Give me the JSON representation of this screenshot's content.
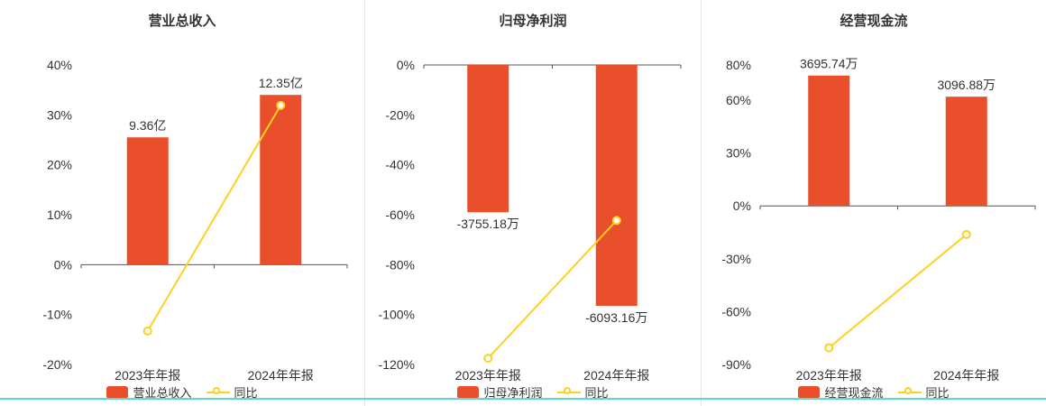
{
  "page": {
    "background": "#ffffff",
    "bottom_border_color": "#5ad8d2"
  },
  "colors": {
    "bar": "#ea4f2c",
    "line": "#ffd020",
    "axis": "#555555",
    "text": "#333333",
    "divider": "#e5e5e5"
  },
  "chart_data": [
    {
      "type": "bar",
      "title": "营业总收入",
      "categories": [
        "2023年年报",
        "2024年年报"
      ],
      "bar_series_name": "营业总收入",
      "line_series_name": "同比",
      "bar_labels": [
        "9.36亿",
        "12.35亿"
      ],
      "bar_axis_values": [
        25.5,
        34.0
      ],
      "line_values": [
        -13.3,
        31.9
      ],
      "y_ticks": [
        40,
        30,
        20,
        10,
        0,
        -10,
        -20
      ],
      "ylim": [
        -20,
        40
      ],
      "tick_suffix": "%",
      "grid": false,
      "legend_position": "bottom",
      "bar_label_position": "above"
    },
    {
      "type": "bar",
      "title": "归母净利润",
      "categories": [
        "2023年年报",
        "2024年年报"
      ],
      "bar_series_name": "归母净利润",
      "line_series_name": "同比",
      "bar_labels": [
        "-3755.18万",
        "-6093.16万"
      ],
      "bar_axis_values": [
        -59.0,
        -96.5
      ],
      "line_values": [
        -117.5,
        -62.3
      ],
      "y_ticks": [
        0,
        -20,
        -40,
        -60,
        -80,
        -100,
        -120
      ],
      "ylim": [
        -120,
        0
      ],
      "tick_suffix": "%",
      "grid": false,
      "legend_position": "bottom",
      "bar_label_position": "below"
    },
    {
      "type": "bar",
      "title": "经营现金流",
      "categories": [
        "2023年年报",
        "2024年年报"
      ],
      "bar_series_name": "经营现金流",
      "line_series_name": "同比",
      "bar_labels": [
        "3695.74万",
        "3096.88万"
      ],
      "bar_axis_values": [
        74.0,
        62.0
      ],
      "line_values": [
        -80.5,
        -16.2
      ],
      "y_ticks": [
        80,
        60,
        30,
        0,
        -30,
        -60,
        -90
      ],
      "ylim": [
        -90,
        80
      ],
      "tick_suffix": "%",
      "grid": false,
      "legend_position": "bottom",
      "bar_label_position": "above"
    }
  ]
}
